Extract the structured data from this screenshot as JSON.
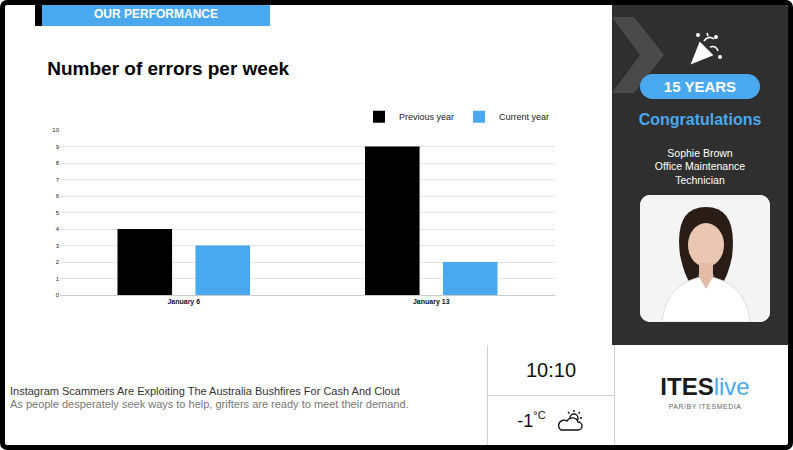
{
  "header": "OUR PERFORMANCE",
  "chart_data": {
    "type": "bar",
    "title": "Number of errors per week",
    "categories": [
      "January 6",
      "January 13"
    ],
    "series": [
      {
        "name": "Previous year",
        "color": "#000000",
        "values": [
          4,
          9
        ]
      },
      {
        "name": "Current year",
        "color": "#4aa8ee",
        "values": [
          3,
          2
        ]
      }
    ],
    "ylim": [
      0,
      10
    ],
    "yticks": [
      0,
      1,
      2,
      3,
      4,
      5,
      6,
      7,
      8,
      9,
      10
    ],
    "grid": true,
    "legend": "top-right"
  },
  "sidebar": {
    "badge": "15 YEARS",
    "greeting": "Congratulations",
    "name": "Sophie Brown",
    "role": "Office Maintenance Technician"
  },
  "ticker": {
    "headline": "Instagram Scammers Are Exploiting The Australia Bushfires For Cash And Clout",
    "summary": "As people desperately seek ways to help, grifters are ready to meet their demand."
  },
  "clock": "10:10",
  "weather": {
    "temperature": -1,
    "unit": "°C"
  },
  "brand": {
    "name_dark": "ITES",
    "name_accent": "live",
    "tagline": "PAR/BY ITESMEDIA"
  }
}
